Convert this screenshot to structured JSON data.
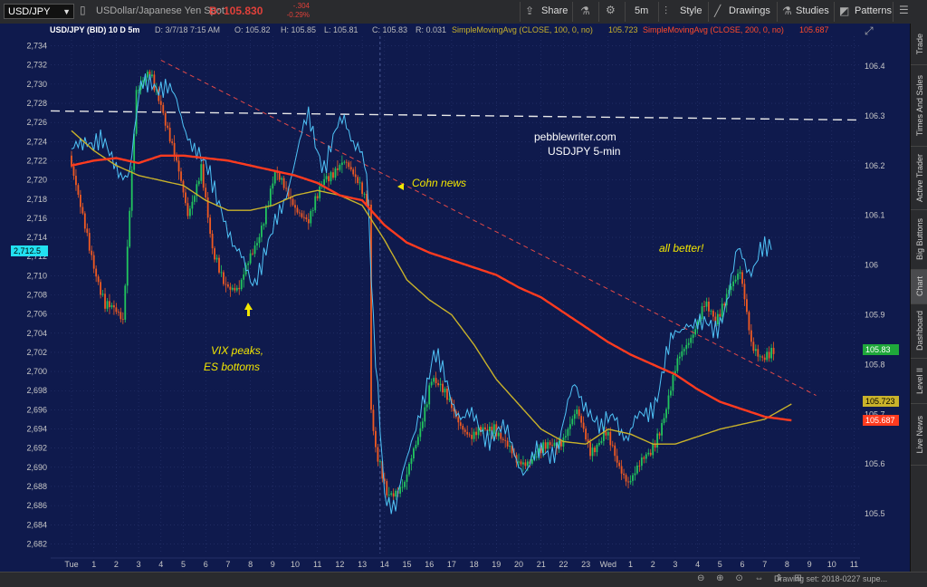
{
  "toolbar": {
    "symbol": "USD/JPY",
    "description": "USDollar/Japanese Yen Spot",
    "bid_label": "B: 105.830",
    "change": "-.304",
    "change_pct": "-0.29%",
    "share": "Share",
    "timeframe": "5m",
    "style": "Style",
    "drawings": "Drawings",
    "studies": "Studies",
    "patterns": "Patterns"
  },
  "header": {
    "title": "USD/JPY (BID) 10 D 5m",
    "date": "D: 3/7/18 7:15 AM",
    "open": "O: 105.82",
    "high": "H: 105.85",
    "low": "L: 105.81",
    "close": "C: 105.83",
    "range": "R: 0.031",
    "sma100": "SimpleMovingAvg (CLOSE, 100, 0, no)",
    "sma100_val": "105.723",
    "sma200": "SimpleMovingAvg (CLOSE, 200, 0, no)",
    "sma200_val": "105.687"
  },
  "annotations": {
    "site": "pebblewriter.com",
    "subtitle": "USDJPY 5-min",
    "cohn": "Cohn news",
    "vix1": "VIX peaks,",
    "vix2": "ES bottoms",
    "better": "all better!"
  },
  "badges": {
    "left": "2,712.5",
    "price": "105.83",
    "sma100": "105.723",
    "sma200": "105.687"
  },
  "bottom": {
    "drawing_set": "Drawing set: 2018-0227 supe..."
  },
  "rail": [
    "Trade",
    "Times And Sales",
    "Active Trader",
    "Big Buttons",
    "Chart",
    "Dashboard",
    "Level II",
    "Live News"
  ],
  "colors": {
    "background": "#0f1a4d",
    "candle_up": "#22c55e",
    "candle_down": "#f05a22",
    "es_line": "#4fc3f7",
    "sma100": "#c9b22a",
    "sma200": "#ff3b1f",
    "trendline": "#e04848",
    "annotation": "#f2e600"
  },
  "chart_data": {
    "type": "line",
    "left_axis": {
      "ticks": [
        "2,734",
        "2,732",
        "2,730",
        "2,728",
        "2,726",
        "2,724",
        "2,722",
        "2,720",
        "2,718",
        "2,716",
        "2,714",
        "2,712",
        "2,710",
        "2,708",
        "2,706",
        "2,704",
        "2,702",
        "2,700",
        "2,698",
        "2,696",
        "2,694",
        "2,692",
        "2,690",
        "2,688",
        "2,686",
        "2,684",
        "2,682"
      ],
      "range": [
        2681,
        2735
      ]
    },
    "right_axis": {
      "ticks": [
        "106.4",
        "106.3",
        "106.2",
        "106.1",
        "106",
        "105.9",
        "105.8",
        "105.7",
        "105.6",
        "105.5"
      ],
      "range": [
        105.42,
        106.46
      ]
    },
    "x_ticks": [
      "Tue",
      "1",
      "2",
      "3",
      "4",
      "5",
      "6",
      "7",
      "8",
      "9",
      "10",
      "11",
      "12",
      "13",
      "14",
      "15",
      "16",
      "17",
      "18",
      "19",
      "20",
      "21",
      "22",
      "23",
      "Wed",
      "1",
      "2",
      "3",
      "4",
      "5",
      "6",
      "7",
      "8",
      "9",
      "10",
      "11"
    ],
    "dashed_level_left": 2727.2,
    "series": [
      {
        "name": "USD/JPY",
        "kind": "candlestick",
        "axis": "right",
        "x_range": [
          0,
          31.5
        ],
        "keyframes": [
          [
            0,
            106.22
          ],
          [
            0.5,
            106.11
          ],
          [
            1,
            106.02
          ],
          [
            1.6,
            105.92
          ],
          [
            2.4,
            105.89
          ],
          [
            3,
            106.35
          ],
          [
            3.6,
            106.38
          ],
          [
            4.1,
            106.33
          ],
          [
            4.7,
            106.22
          ],
          [
            5.3,
            106.1
          ],
          [
            5.9,
            106.2
          ],
          [
            6.4,
            106.02
          ],
          [
            6.9,
            105.97
          ],
          [
            7.6,
            105.95
          ],
          [
            8.4,
            106.05
          ],
          [
            9.2,
            106.18
          ],
          [
            10,
            106.13
          ],
          [
            10.7,
            106.08
          ],
          [
            11.4,
            106.18
          ],
          [
            12.3,
            106.2
          ],
          [
            13,
            106.17
          ],
          [
            13.4,
            106.12
          ],
          [
            13.45,
            105.73
          ],
          [
            13.7,
            105.62
          ],
          [
            14.2,
            105.54
          ],
          [
            15,
            105.56
          ],
          [
            15.6,
            105.65
          ],
          [
            16.2,
            105.78
          ],
          [
            17,
            105.72
          ],
          [
            18,
            105.65
          ],
          [
            19,
            105.68
          ],
          [
            20,
            105.6
          ],
          [
            21,
            105.62
          ],
          [
            22,
            105.65
          ],
          [
            22.7,
            105.7
          ],
          [
            23.3,
            105.63
          ],
          [
            24,
            105.66
          ],
          [
            24.5,
            105.6
          ],
          [
            25,
            105.57
          ],
          [
            26,
            105.62
          ],
          [
            26.6,
            105.7
          ],
          [
            27.2,
            105.8
          ],
          [
            27.8,
            105.86
          ],
          [
            28.4,
            105.92
          ],
          [
            28.9,
            105.88
          ],
          [
            29.5,
            105.96
          ],
          [
            30,
            105.98
          ],
          [
            30.5,
            105.84
          ],
          [
            31,
            105.82
          ]
        ]
      },
      {
        "name": "S&P 500 futures",
        "kind": "line",
        "axis": "left",
        "x_range": [
          0,
          31.4
        ],
        "keyframes": [
          [
            0,
            2722
          ],
          [
            0.7,
            2725
          ],
          [
            1.2,
            2724
          ],
          [
            1.7,
            2722
          ],
          [
            2.6,
            2721
          ],
          [
            3.1,
            2729
          ],
          [
            3.6,
            2731
          ],
          [
            4,
            2730
          ],
          [
            4.6,
            2728
          ],
          [
            5.3,
            2725
          ],
          [
            5.9,
            2721
          ],
          [
            6.7,
            2718
          ],
          [
            7.3,
            2712
          ],
          [
            8.1,
            2710
          ],
          [
            8.9,
            2713
          ],
          [
            9.8,
            2721
          ],
          [
            10.6,
            2726
          ],
          [
            11.3,
            2722
          ],
          [
            12.2,
            2726
          ],
          [
            12.9,
            2724
          ],
          [
            13.2,
            2720
          ],
          [
            13.5,
            2704
          ],
          [
            14,
            2688
          ],
          [
            14.5,
            2686
          ],
          [
            15,
            2690
          ],
          [
            15.6,
            2697
          ],
          [
            16.2,
            2701
          ],
          [
            16.8,
            2699
          ],
          [
            17.5,
            2695
          ],
          [
            18.5,
            2694
          ],
          [
            19.5,
            2693
          ],
          [
            20.3,
            2690
          ],
          [
            21,
            2691
          ],
          [
            21.8,
            2693
          ],
          [
            22.5,
            2698
          ],
          [
            23.1,
            2697
          ],
          [
            23.7,
            2693
          ],
          [
            24.3,
            2696
          ],
          [
            24.9,
            2693
          ],
          [
            25.5,
            2695
          ],
          [
            26.2,
            2698
          ],
          [
            26.9,
            2703
          ],
          [
            27.5,
            2706
          ],
          [
            28.2,
            2704
          ],
          [
            28.8,
            2705
          ],
          [
            29.4,
            2708
          ],
          [
            29.8,
            2712
          ],
          [
            30.3,
            2711
          ],
          [
            30.8,
            2713
          ],
          [
            31.1,
            2712
          ]
        ]
      },
      {
        "name": "SimpleMovingAvg (CLOSE, 100, 0, no)",
        "kind": "line",
        "axis": "right",
        "x_range": [
          0,
          32.3
        ],
        "keyframes": [
          [
            0,
            106.27
          ],
          [
            1,
            106.23
          ],
          [
            2,
            106.2
          ],
          [
            3,
            106.18
          ],
          [
            4,
            106.17
          ],
          [
            5,
            106.16
          ],
          [
            6,
            106.13
          ],
          [
            7,
            106.11
          ],
          [
            8,
            106.11
          ],
          [
            9,
            106.12
          ],
          [
            10,
            106.14
          ],
          [
            11,
            106.15
          ],
          [
            12,
            106.14
          ],
          [
            13,
            106.12
          ],
          [
            14,
            106.05
          ],
          [
            15,
            105.97
          ],
          [
            16,
            105.93
          ],
          [
            17,
            105.9
          ],
          [
            18,
            105.84
          ],
          [
            19,
            105.77
          ],
          [
            20,
            105.72
          ],
          [
            21,
            105.67
          ],
          [
            22,
            105.645
          ],
          [
            23,
            105.64
          ],
          [
            24,
            105.67
          ],
          [
            25,
            105.66
          ],
          [
            26,
            105.64
          ],
          [
            27,
            105.64
          ],
          [
            28,
            105.655
          ],
          [
            29,
            105.67
          ],
          [
            30,
            105.68
          ],
          [
            31,
            105.69
          ],
          [
            32.3,
            105.723
          ]
        ]
      },
      {
        "name": "SimpleMovingAvg (CLOSE, 200, 0, no)",
        "kind": "line",
        "axis": "right",
        "x_range": [
          0,
          32.3
        ],
        "keyframes": [
          [
            0,
            106.2
          ],
          [
            1,
            106.21
          ],
          [
            2,
            106.215
          ],
          [
            3,
            106.205
          ],
          [
            4,
            106.22
          ],
          [
            5,
            106.22
          ],
          [
            6,
            106.215
          ],
          [
            7,
            106.21
          ],
          [
            8,
            106.2
          ],
          [
            9,
            106.19
          ],
          [
            10,
            106.18
          ],
          [
            11,
            106.165
          ],
          [
            12,
            106.14
          ],
          [
            13,
            106.13
          ],
          [
            14,
            106.08
          ],
          [
            15,
            106.045
          ],
          [
            16,
            106.025
          ],
          [
            17,
            106.01
          ],
          [
            18,
            105.995
          ],
          [
            19,
            105.98
          ],
          [
            20,
            105.955
          ],
          [
            21,
            105.935
          ],
          [
            22,
            105.905
          ],
          [
            23,
            105.875
          ],
          [
            24,
            105.845
          ],
          [
            25,
            105.82
          ],
          [
            26,
            105.8
          ],
          [
            27,
            105.78
          ],
          [
            28,
            105.75
          ],
          [
            29,
            105.725
          ],
          [
            30,
            105.71
          ],
          [
            31,
            105.695
          ],
          [
            32.3,
            105.687
          ]
        ]
      }
    ],
    "trendline": {
      "axis": "left",
      "from": [
        4,
        2732.5
      ],
      "to": [
        33.3,
        2697.5
      ]
    }
  }
}
